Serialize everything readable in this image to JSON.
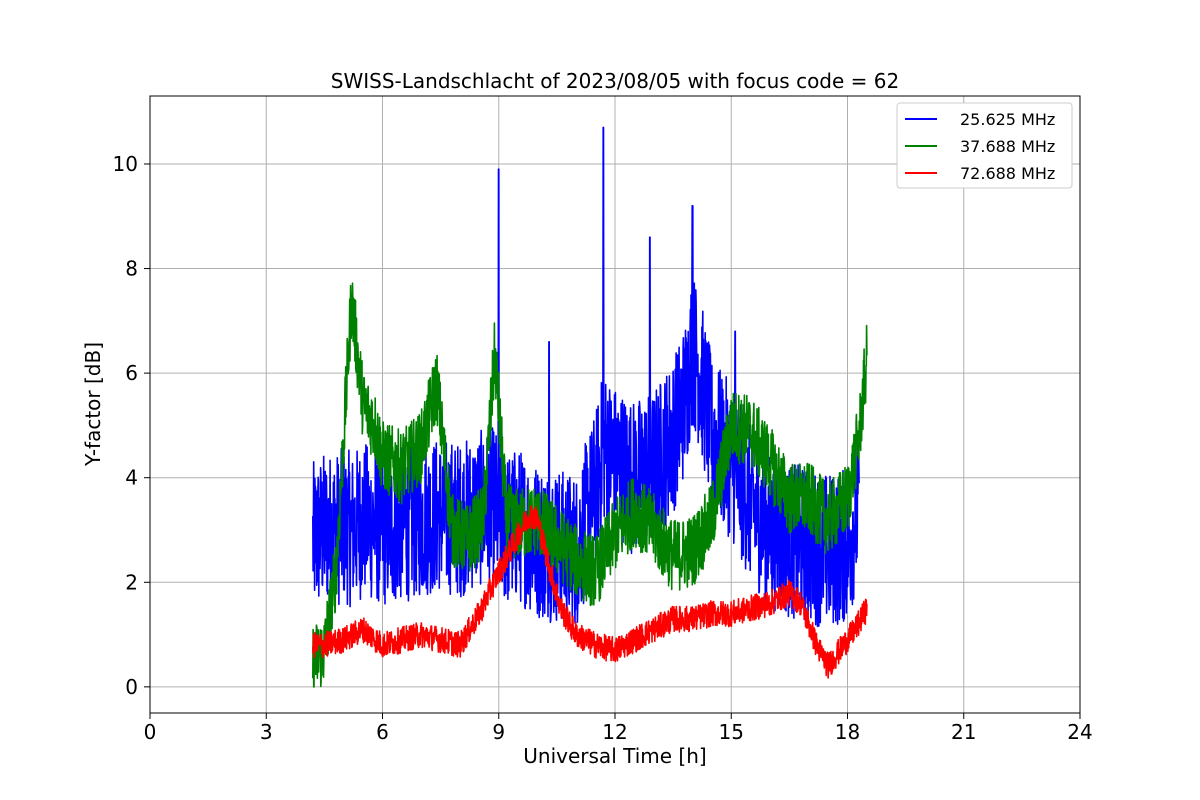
{
  "chart_data": {
    "type": "line",
    "title": "SWISS-Landschlacht of 2023/08/05 with focus code = 62",
    "xlabel": "Universal Time [h]",
    "ylabel": "Y-factor [dB]",
    "xlim": [
      0,
      24
    ],
    "ylim": [
      -0.5,
      11.3
    ],
    "xticks": [
      0,
      3,
      6,
      9,
      12,
      15,
      18,
      21,
      24
    ],
    "yticks": [
      0,
      2,
      4,
      6,
      8,
      10
    ],
    "grid": true,
    "legend_position": "top-right",
    "series": [
      {
        "name": "25.625 MHz",
        "color": "#0000ff",
        "x": [
          4.2,
          4.5,
          4.8,
          5.0,
          5.2,
          5.5,
          5.8,
          6.0,
          6.5,
          7.0,
          7.5,
          8.0,
          8.5,
          8.9,
          9.0,
          9.2,
          9.5,
          10.0,
          10.5,
          11.0,
          11.5,
          11.7,
          12.0,
          12.5,
          13.0,
          13.5,
          13.8,
          14.0,
          14.2,
          14.5,
          15.0,
          15.5,
          16.0,
          16.5,
          17.0,
          17.5,
          18.0,
          18.3
        ],
        "y": [
          2.8,
          3.0,
          3.0,
          3.1,
          3.0,
          3.2,
          3.1,
          3.0,
          3.1,
          3.2,
          3.3,
          3.2,
          3.4,
          3.5,
          3.2,
          3.0,
          3.1,
          2.8,
          2.7,
          2.6,
          3.8,
          4.6,
          4.3,
          4.0,
          4.2,
          4.8,
          5.5,
          6.5,
          6.0,
          4.8,
          4.3,
          3.5,
          3.0,
          2.8,
          2.7,
          2.6,
          2.7,
          3.5
        ],
        "spikes": [
          {
            "x": 9.0,
            "y": 9.9
          },
          {
            "x": 11.7,
            "y": 10.7
          },
          {
            "x": 12.9,
            "y": 8.6
          },
          {
            "x": 14.0,
            "y": 9.2
          },
          {
            "x": 10.3,
            "y": 6.6
          },
          {
            "x": 15.1,
            "y": 6.8
          }
        ]
      },
      {
        "name": "37.688 MHz",
        "color": "#008000",
        "x": [
          4.2,
          4.5,
          4.8,
          5.0,
          5.2,
          5.5,
          5.8,
          6.0,
          6.5,
          7.0,
          7.4,
          7.8,
          8.2,
          8.6,
          8.9,
          9.2,
          9.5,
          10.0,
          10.5,
          11.0,
          11.5,
          12.0,
          12.5,
          13.0,
          13.5,
          14.0,
          14.5,
          15.0,
          15.5,
          16.0,
          16.5,
          17.0,
          17.5,
          18.0,
          18.3,
          18.5
        ],
        "y": [
          0.5,
          0.7,
          2.2,
          4.8,
          7.4,
          5.4,
          5.0,
          4.4,
          4.2,
          4.6,
          5.8,
          3.0,
          2.8,
          3.2,
          6.4,
          3.2,
          3.1,
          3.2,
          2.8,
          2.4,
          2.2,
          2.9,
          3.4,
          3.0,
          2.5,
          2.6,
          3.2,
          5.0,
          4.9,
          4.3,
          3.6,
          3.6,
          3.2,
          3.6,
          4.8,
          6.3
        ]
      },
      {
        "name": "72.688 MHz",
        "color": "#ff0000",
        "x": [
          4.2,
          4.5,
          5.0,
          5.5,
          6.0,
          6.5,
          7.0,
          7.5,
          8.0,
          8.5,
          9.0,
          9.5,
          9.8,
          10.0,
          10.3,
          10.6,
          11.0,
          11.5,
          12.0,
          12.5,
          13.0,
          13.5,
          14.0,
          14.5,
          15.0,
          15.5,
          16.0,
          16.5,
          16.8,
          17.2,
          17.5,
          17.8,
          18.2,
          18.5
        ],
        "y": [
          0.8,
          0.8,
          0.9,
          1.1,
          0.8,
          0.9,
          1.0,
          0.9,
          0.8,
          1.4,
          2.2,
          2.9,
          3.3,
          3.2,
          2.3,
          1.5,
          1.0,
          0.8,
          0.7,
          0.9,
          1.1,
          1.3,
          1.3,
          1.4,
          1.4,
          1.5,
          1.6,
          1.8,
          1.6,
          0.8,
          0.4,
          0.7,
          1.1,
          1.5
        ]
      }
    ]
  }
}
